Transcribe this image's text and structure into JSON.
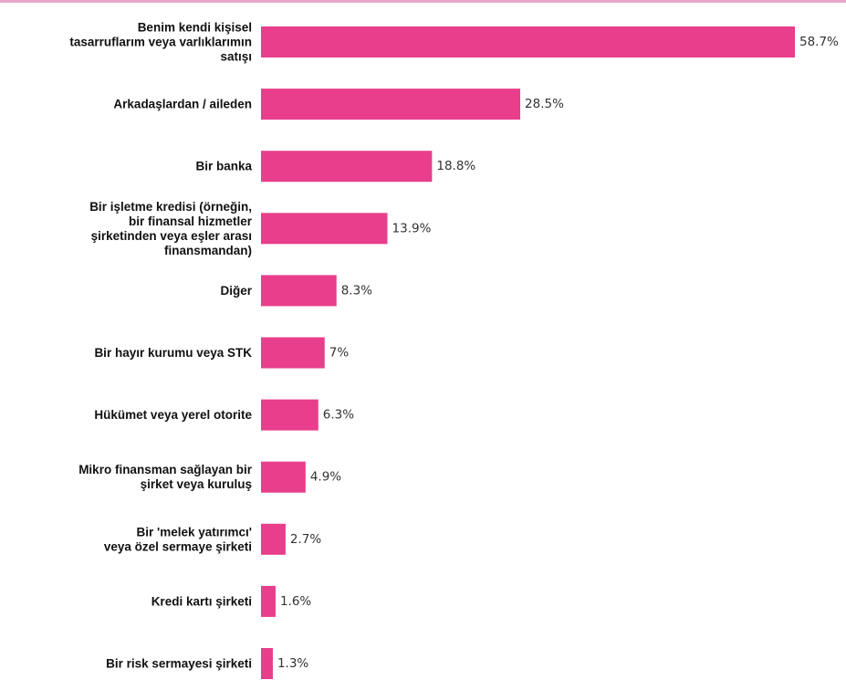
{
  "chart_data": {
    "type": "bar",
    "orientation": "horizontal",
    "title": "",
    "xlabel": "",
    "ylabel": "",
    "grid": false,
    "xlim": [
      0,
      58.7
    ],
    "bar_color": "#e83e8c",
    "categories": [
      [
        "Benim kendi kişisel",
        "tasarruflarım veya varlıklarımın",
        "satışı"
      ],
      [
        "Arkadaşlardan / aileden"
      ],
      [
        "Bir banka"
      ],
      [
        "Bir işletme kredisi (örneğin,",
        "bir finansal hizmetler",
        "şirketinden veya eşler arası",
        "finansmandan)"
      ],
      [
        "Diğer"
      ],
      [
        "Bir hayır kurumu veya STK"
      ],
      [
        "Hükümet veya yerel otorite"
      ],
      [
        "Mikro finansman sağlayan bir",
        "şirket veya kuruluş"
      ],
      [
        "Bir 'melek yatırımcı'",
        "veya özel sermaye şirketi"
      ],
      [
        "Kredi kartı şirketi"
      ],
      [
        "Bir risk sermayesi şirketi"
      ]
    ],
    "values": [
      58.7,
      28.5,
      18.8,
      13.9,
      8.3,
      7,
      6.3,
      4.9,
      2.7,
      1.6,
      1.3
    ],
    "value_labels": [
      "58.7%",
      "28.5%",
      "18.8%",
      "13.9%",
      "8.3%",
      "7%",
      "6.3%",
      "4.9%",
      "2.7%",
      "1.6%",
      "1.3%"
    ]
  }
}
